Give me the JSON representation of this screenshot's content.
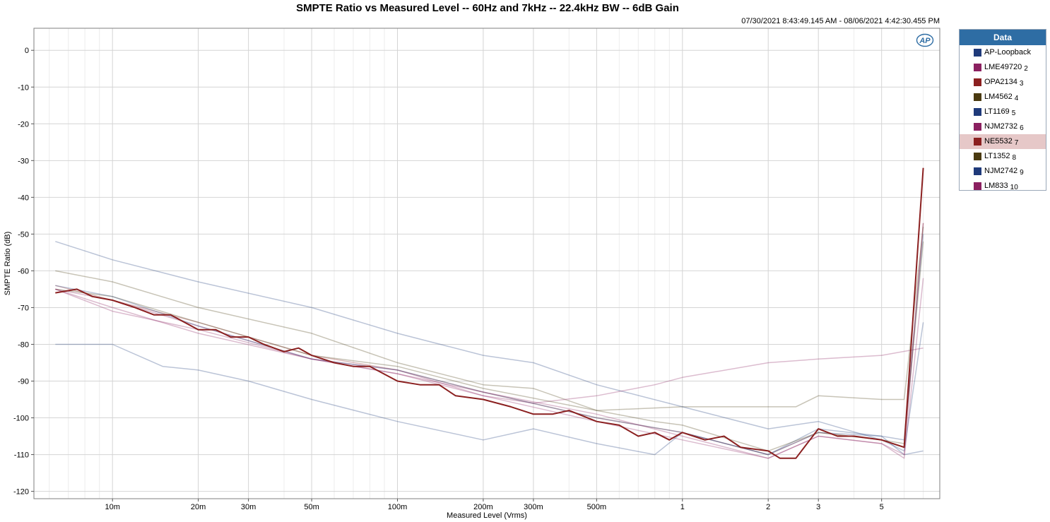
{
  "chart_data": {
    "type": "line",
    "title": "SMPTE Ratio vs Measured Level -- 60Hz and 7kHz -- 22.4kHz BW -- 6dB Gain",
    "timestamp": "07/30/2021 8:43:49.145 AM - 08/06/2021 4:42:30.455 PM",
    "xlabel": "Measured Level (Vrms)",
    "ylabel": "SMPTE Ratio (dB)",
    "xscale": "log",
    "xlim": [
      0.0053,
      8.0
    ],
    "ylim": [
      -122,
      6
    ],
    "yticks": [
      0,
      -10,
      -20,
      -30,
      -40,
      -50,
      -60,
      -70,
      -80,
      -90,
      -100,
      -110,
      -120
    ],
    "xticks": [
      {
        "value": 0.01,
        "label": "10m"
      },
      {
        "value": 0.02,
        "label": "20m"
      },
      {
        "value": 0.03,
        "label": "30m"
      },
      {
        "value": 0.05,
        "label": "50m"
      },
      {
        "value": 0.1,
        "label": "100m"
      },
      {
        "value": 0.2,
        "label": "200m"
      },
      {
        "value": 0.3,
        "label": "300m"
      },
      {
        "value": 0.5,
        "label": "500m"
      },
      {
        "value": 1,
        "label": "1"
      },
      {
        "value": 2,
        "label": "2"
      },
      {
        "value": 3,
        "label": "3"
      },
      {
        "value": 5,
        "label": "5"
      }
    ],
    "grid": true,
    "legend_title": "Data",
    "legend_position": "right",
    "selected_series": "NE5532",
    "series": [
      {
        "name": "AP-Loopback",
        "index": "",
        "color": "#1f3a7a",
        "opacity": 0.3,
        "x": [
          0.0063,
          0.01,
          0.015,
          0.02,
          0.03,
          0.05,
          0.1,
          0.2,
          0.3,
          0.5,
          0.8,
          1,
          2,
          3,
          5,
          6,
          7
        ],
        "y": [
          -80,
          -80,
          -86,
          -87,
          -90,
          -95,
          -101,
          -106,
          -103,
          -107,
          -110,
          -104,
          -110,
          -103,
          -105,
          -110,
          -109
        ]
      },
      {
        "name": "LME49720",
        "index": "2",
        "color": "#8b2060",
        "opacity": 0.3,
        "x": [
          0.0063,
          0.01,
          0.02,
          0.05,
          0.1,
          0.2,
          0.5,
          1,
          2,
          3,
          5,
          6,
          7
        ],
        "y": [
          -65,
          -71,
          -76,
          -84,
          -88,
          -94,
          -101,
          -106,
          -111,
          -105,
          -107,
          -111,
          -62
        ]
      },
      {
        "name": "OPA2134",
        "index": "3",
        "color": "#8b2020",
        "opacity": 0.3,
        "x": [
          0.0063,
          0.01,
          0.02,
          0.05,
          0.1,
          0.2,
          0.5,
          1,
          2,
          3,
          5,
          6,
          7
        ],
        "y": [
          -64,
          -68,
          -74,
          -83,
          -87,
          -93,
          -100,
          -104,
          -110,
          -104,
          -106,
          -108,
          -47
        ]
      },
      {
        "name": "LM4562",
        "index": "4",
        "color": "#4a3a10",
        "opacity": 0.3,
        "x": [
          0.0063,
          0.01,
          0.02,
          0.05,
          0.1,
          0.2,
          0.3,
          0.5,
          1,
          2,
          2.5,
          3,
          5,
          6,
          7
        ],
        "y": [
          -60,
          -63,
          -70,
          -77,
          -85,
          -91,
          -92,
          -98,
          -97,
          -97,
          -97,
          -94,
          -95,
          -95,
          -48
        ]
      },
      {
        "name": "LT1169",
        "index": "5",
        "color": "#1f3a7a",
        "opacity": 0.3,
        "x": [
          0.0063,
          0.01,
          0.02,
          0.05,
          0.1,
          0.2,
          0.3,
          0.5,
          1,
          2,
          3,
          5,
          6,
          7
        ],
        "y": [
          -52,
          -57,
          -63,
          -70,
          -77,
          -83,
          -85,
          -91,
          -97,
          -103,
          -101,
          -106,
          -109,
          -74
        ]
      },
      {
        "name": "NJM2732",
        "index": "6",
        "color": "#8b2060",
        "opacity": 0.3,
        "x": [
          0.0063,
          0.01,
          0.02,
          0.05,
          0.1,
          0.2,
          0.3,
          0.5,
          0.8,
          1,
          2,
          3,
          5,
          7
        ],
        "y": [
          -65,
          -68,
          -75,
          -84,
          -87,
          -94,
          -96,
          -94,
          -91,
          -89,
          -85,
          -84,
          -83,
          -81
        ]
      },
      {
        "name": "NE5532",
        "index": "7",
        "color": "#8b2020",
        "opacity": 1.0,
        "x": [
          0.0063,
          0.0075,
          0.0085,
          0.01,
          0.012,
          0.014,
          0.016,
          0.02,
          0.023,
          0.026,
          0.03,
          0.034,
          0.04,
          0.045,
          0.05,
          0.06,
          0.07,
          0.08,
          0.1,
          0.12,
          0.14,
          0.16,
          0.2,
          0.25,
          0.3,
          0.35,
          0.4,
          0.5,
          0.6,
          0.7,
          0.8,
          0.9,
          1,
          1.2,
          1.4,
          1.6,
          2,
          2.2,
          2.5,
          3,
          3.5,
          4,
          5,
          6,
          7
        ],
        "y": [
          -66,
          -65,
          -67,
          -68,
          -70,
          -72,
          -72,
          -76,
          -76,
          -78,
          -78,
          -80,
          -82,
          -81,
          -83,
          -85,
          -86,
          -86,
          -90,
          -91,
          -91,
          -94,
          -95,
          -97,
          -99,
          -99,
          -98,
          -101,
          -102,
          -105,
          -104,
          -106,
          -104,
          -106,
          -105,
          -108,
          -109,
          -111,
          -111,
          -103,
          -105,
          -105,
          -106,
          -108,
          -32
        ]
      },
      {
        "name": "LT1352",
        "index": "8",
        "color": "#4a3a10",
        "opacity": 0.3,
        "x": [
          0.0063,
          0.01,
          0.02,
          0.05,
          0.1,
          0.2,
          0.5,
          0.8,
          1,
          2,
          3,
          5,
          6,
          7
        ],
        "y": [
          -65,
          -67,
          -74,
          -83,
          -86,
          -92,
          -98,
          -101,
          -102,
          -109,
          -104,
          -106,
          -107,
          -52
        ]
      },
      {
        "name": "NJM2742",
        "index": "9",
        "color": "#1f3a7a",
        "opacity": 0.3,
        "x": [
          0.0063,
          0.01,
          0.02,
          0.05,
          0.1,
          0.2,
          0.5,
          1,
          2,
          3,
          5,
          6,
          7
        ],
        "y": [
          -64,
          -67,
          -75,
          -84,
          -87,
          -93,
          -100,
          -104,
          -110,
          -104,
          -105,
          -106,
          -50
        ]
      },
      {
        "name": "LM833",
        "index": "10",
        "color": "#8b2060",
        "opacity": 0.3,
        "x": [
          0.0063,
          0.01,
          0.02,
          0.05,
          0.1,
          0.2,
          0.5,
          1,
          2,
          3,
          5,
          6,
          7
        ],
        "y": [
          -65,
          -70,
          -77,
          -84,
          -88,
          -93,
          -99,
          -105,
          -111,
          -105,
          -107,
          -110,
          -47
        ]
      }
    ]
  }
}
